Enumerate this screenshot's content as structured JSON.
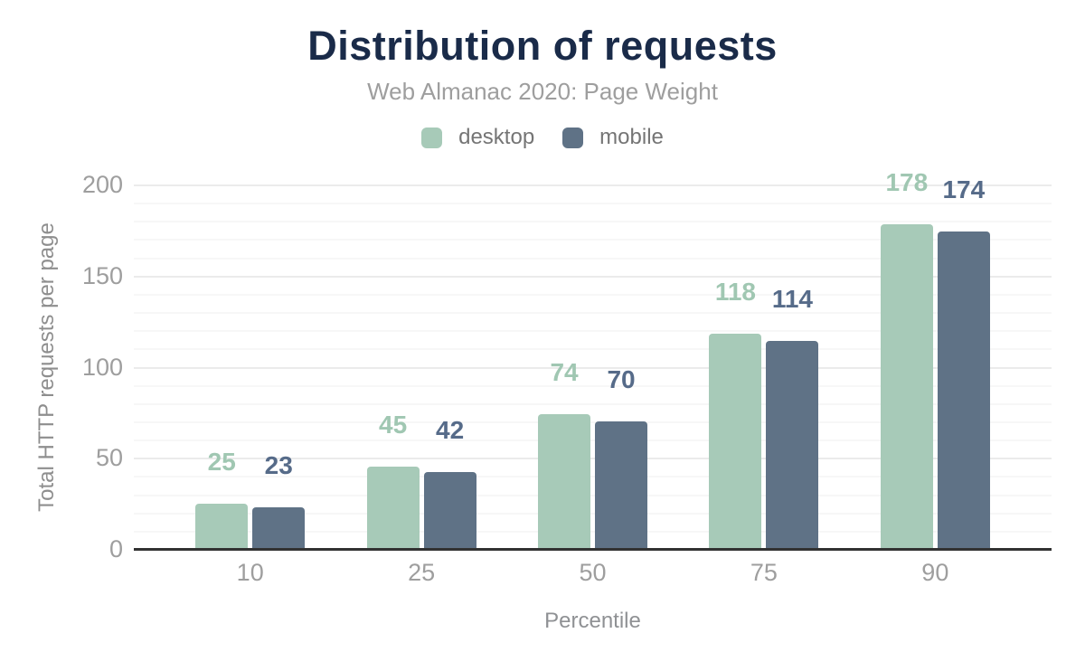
{
  "header": {
    "title": "Distribution of requests",
    "subtitle": "Web Almanac 2020: Page Weight"
  },
  "legend": {
    "items": [
      {
        "label": "desktop",
        "color": "#a7cab8"
      },
      {
        "label": "mobile",
        "color": "#5f7286"
      }
    ]
  },
  "colors": {
    "title_text": "#1a2b49",
    "subtitle_text": "#9e9e9e",
    "legend_text": "#757575",
    "axis_tick_text": "#9e9e9e",
    "axis_title_text": "#8e8e8e",
    "axis_line": "#323232",
    "grid_minor": "#f7f7f7",
    "grid_major": "#ebebeb",
    "desktop_bar": "#a7cab8",
    "mobile_bar": "#5f7286",
    "desktop_value_label": "#a0c7b2",
    "mobile_value_label": "#566b89"
  },
  "chart_data": {
    "type": "bar",
    "title": "Distribution of requests",
    "subtitle": "Web Almanac 2020: Page Weight",
    "categories": [
      "10",
      "25",
      "50",
      "75",
      "90"
    ],
    "series": [
      {
        "name": "desktop",
        "values": [
          25,
          45,
          74,
          118,
          178
        ],
        "color": "#a7cab8",
        "label_color": "#a0c7b2"
      },
      {
        "name": "mobile",
        "values": [
          23,
          42,
          70,
          114,
          174
        ],
        "color": "#5f7286",
        "label_color": "#566b89"
      }
    ],
    "xlabel": "Percentile",
    "ylabel": "Total HTTP requests per page",
    "ylim": [
      0,
      200
    ],
    "yticks": [
      0,
      50,
      100,
      150,
      200
    ],
    "grid_minor_step": 10,
    "grid_major_step": 50,
    "grid": true,
    "legend_position": "top",
    "value_labels_shown": true
  }
}
